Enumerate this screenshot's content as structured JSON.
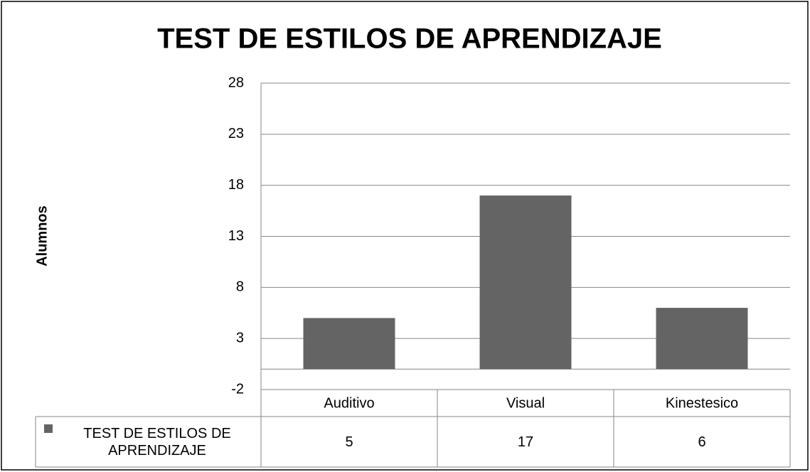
{
  "chart_data": {
    "type": "bar",
    "title": "TEST DE ESTILOS DE APRENDIZAJE",
    "y_label": "Alumnos",
    "categories": [
      "Auditivo",
      "Visual",
      "Kinestesico"
    ],
    "series": [
      {
        "name": "TEST DE ESTILOS DE APRENDIZAJE",
        "color": "#646464",
        "values": [
          5,
          17,
          6
        ]
      }
    ],
    "ylim": [
      -2,
      28
    ],
    "yticks": [
      -2,
      3,
      8,
      13,
      18,
      23,
      28
    ],
    "grid": true,
    "legend": "data-table"
  }
}
